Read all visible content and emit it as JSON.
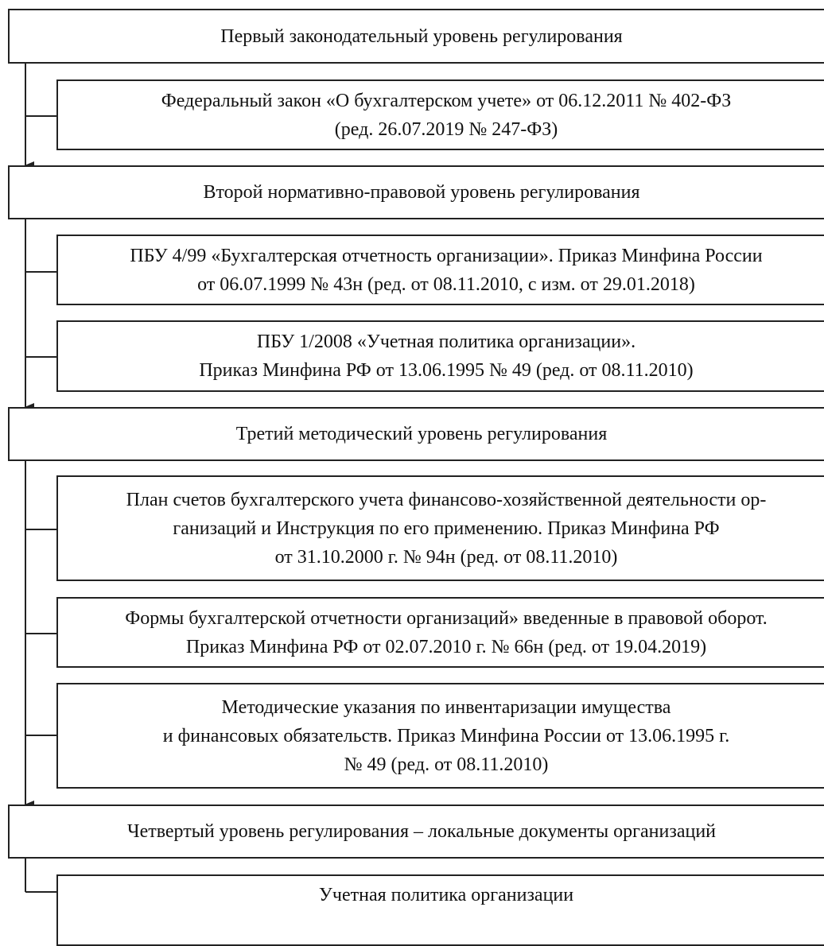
{
  "levels": [
    {
      "title": "Первый законодательный  уровень регулирования",
      "documents": [
        {
          "lines": [
            "Федеральный закон «О бухгалтерском учете» от 06.12.2011 № 402-ФЗ",
            "(ред. 26.07.2019 № 247-ФЗ)"
          ]
        }
      ]
    },
    {
      "title": "Второй нормативно-правовой уровень регулирования",
      "documents": [
        {
          "lines": [
            "ПБУ 4/99 «Бухгалтерская отчетность организации». Приказ   Минфина России",
            "от 06.07.1999 № 43н (ред. от 08.11.2010, с изм. от 29.01.2018)"
          ]
        },
        {
          "lines": [
            "ПБУ 1/2008 «Учетная политика организации».",
            "Приказ Минфина РФ от 13.06.1995 № 49 (ред. от 08.11.2010)"
          ]
        }
      ]
    },
    {
      "title": "Третий методический  уровень регулирования",
      "documents": [
        {
          "lines": [
            "План счетов бухгалтерского учета финансово-хозяйственной деятельности ор-",
            "ганизаций и Инструкция по его применению. Приказ  Минфина РФ",
            "от 31.10.2000 г. № 94н (ред. от 08.11.2010)"
          ]
        },
        {
          "lines": [
            "Формы бухгалтерской отчетности организаций» введенные в правовой оборот.",
            "Приказ  Минфина РФ от 02.07.2010 г. № 66н (ред. от 19.04.2019)"
          ]
        },
        {
          "lines": [
            "Методические указания по инвентаризации имущества",
            "и финансовых обязательств. Приказ Минфина России от 13.06.1995 г.",
            "№ 49 (ред. от 08.11.2010)"
          ]
        }
      ]
    },
    {
      "title": "Четвертый уровень регулирования – локальные документы организаций",
      "documents": [
        {
          "lines": [
            "Учетная политика организации"
          ]
        }
      ]
    }
  ]
}
